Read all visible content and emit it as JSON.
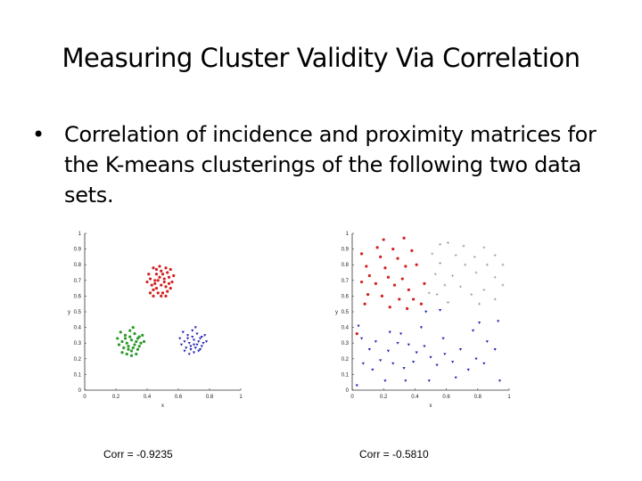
{
  "slide": {
    "title": "Measuring Cluster Validity Via Correlation",
    "bullet": "•",
    "bullet_text": "Correlation of incidence and proximity matrices for the K-means clusterings of the following two data sets."
  },
  "chart_data": [
    {
      "type": "scatter",
      "caption": "Corr = -0.9235",
      "xlabel": "x",
      "ylabel": "y",
      "xlim": [
        0,
        1
      ],
      "ylim": [
        0,
        1
      ],
      "x_ticks": [
        "0",
        "0.2",
        "0.4",
        "0.6",
        "0.8",
        "1"
      ],
      "y_ticks": [
        "0",
        "0.1",
        "0.2",
        "0.3",
        "0.4",
        "0.5",
        "0.6",
        "0.7",
        "0.8",
        "0.9",
        "1"
      ],
      "series": [
        {
          "color": "#d42020",
          "marker": "dot",
          "points": [
            [
              0.44,
              0.78
            ],
            [
              0.46,
              0.74
            ],
            [
              0.49,
              0.76
            ],
            [
              0.52,
              0.78
            ],
            [
              0.55,
              0.77
            ],
            [
              0.42,
              0.71
            ],
            [
              0.45,
              0.7
            ],
            [
              0.48,
              0.72
            ],
            [
              0.51,
              0.71
            ],
            [
              0.54,
              0.72
            ],
            [
              0.43,
              0.67
            ],
            [
              0.46,
              0.65
            ],
            [
              0.49,
              0.67
            ],
            [
              0.52,
              0.66
            ],
            [
              0.47,
              0.62
            ],
            [
              0.5,
              0.62
            ],
            [
              0.53,
              0.63
            ],
            [
              0.44,
              0.64
            ],
            [
              0.56,
              0.69
            ],
            [
              0.41,
              0.74
            ],
            [
              0.48,
              0.79
            ],
            [
              0.51,
              0.69
            ],
            [
              0.45,
              0.68
            ],
            [
              0.5,
              0.74
            ],
            [
              0.53,
              0.75
            ],
            [
              0.47,
              0.7
            ],
            [
              0.55,
              0.65
            ],
            [
              0.42,
              0.62
            ],
            [
              0.49,
              0.6
            ],
            [
              0.57,
              0.73
            ],
            [
              0.4,
              0.69
            ],
            [
              0.44,
              0.6
            ],
            [
              0.52,
              0.6
            ],
            [
              0.46,
              0.77
            ],
            [
              0.54,
              0.68
            ]
          ]
        },
        {
          "color": "#2a9a2a",
          "marker": "dot",
          "points": [
            [
              0.23,
              0.37
            ],
            [
              0.26,
              0.35
            ],
            [
              0.29,
              0.38
            ],
            [
              0.32,
              0.36
            ],
            [
              0.35,
              0.34
            ],
            [
              0.24,
              0.31
            ],
            [
              0.27,
              0.3
            ],
            [
              0.3,
              0.32
            ],
            [
              0.33,
              0.31
            ],
            [
              0.36,
              0.3
            ],
            [
              0.25,
              0.27
            ],
            [
              0.28,
              0.26
            ],
            [
              0.31,
              0.27
            ],
            [
              0.34,
              0.26
            ],
            [
              0.27,
              0.23
            ],
            [
              0.3,
              0.22
            ],
            [
              0.33,
              0.23
            ],
            [
              0.22,
              0.29
            ],
            [
              0.37,
              0.35
            ],
            [
              0.29,
              0.34
            ],
            [
              0.32,
              0.29
            ],
            [
              0.26,
              0.33
            ],
            [
              0.35,
              0.28
            ],
            [
              0.24,
              0.24
            ],
            [
              0.31,
              0.4
            ],
            [
              0.28,
              0.28
            ],
            [
              0.34,
              0.33
            ],
            [
              0.21,
              0.33
            ],
            [
              0.38,
              0.31
            ],
            [
              0.3,
              0.25
            ]
          ]
        },
        {
          "color": "#2020b0",
          "marker": "triangle",
          "points": [
            [
              0.63,
              0.37
            ],
            [
              0.66,
              0.35
            ],
            [
              0.69,
              0.38
            ],
            [
              0.72,
              0.36
            ],
            [
              0.75,
              0.34
            ],
            [
              0.64,
              0.31
            ],
            [
              0.67,
              0.3
            ],
            [
              0.7,
              0.32
            ],
            [
              0.73,
              0.31
            ],
            [
              0.76,
              0.3
            ],
            [
              0.65,
              0.27
            ],
            [
              0.68,
              0.26
            ],
            [
              0.71,
              0.27
            ],
            [
              0.74,
              0.26
            ],
            [
              0.67,
              0.23
            ],
            [
              0.7,
              0.24
            ],
            [
              0.73,
              0.25
            ],
            [
              0.62,
              0.29
            ],
            [
              0.77,
              0.35
            ],
            [
              0.69,
              0.34
            ],
            [
              0.72,
              0.29
            ],
            [
              0.66,
              0.33
            ],
            [
              0.75,
              0.28
            ],
            [
              0.64,
              0.25
            ],
            [
              0.71,
              0.4
            ],
            [
              0.68,
              0.28
            ],
            [
              0.74,
              0.33
            ],
            [
              0.61,
              0.33
            ],
            [
              0.78,
              0.31
            ],
            [
              0.7,
              0.29
            ]
          ]
        }
      ]
    },
    {
      "type": "scatter",
      "caption": "Corr = -0.5810",
      "xlabel": "x",
      "ylabel": "y",
      "xlim": [
        0,
        1
      ],
      "ylim": [
        0,
        1
      ],
      "x_ticks": [
        "0",
        "0.2",
        "0.4",
        "0.6",
        "0.8",
        "1"
      ],
      "y_ticks": [
        "0",
        "0.1",
        "0.2",
        "0.3",
        "0.4",
        "0.5",
        "0.6",
        "0.7",
        "0.8",
        "0.9",
        "1"
      ],
      "series": [
        {
          "color": "#d42020",
          "marker": "dot",
          "points": [
            [
              0.2,
              0.96
            ],
            [
              0.33,
              0.97
            ],
            [
              0.16,
              0.91
            ],
            [
              0.26,
              0.9
            ],
            [
              0.38,
              0.89
            ],
            [
              0.06,
              0.87
            ],
            [
              0.18,
              0.85
            ],
            [
              0.29,
              0.84
            ],
            [
              0.09,
              0.79
            ],
            [
              0.21,
              0.78
            ],
            [
              0.34,
              0.79
            ],
            [
              0.41,
              0.8
            ],
            [
              0.11,
              0.73
            ],
            [
              0.23,
              0.72
            ],
            [
              0.32,
              0.71
            ],
            [
              0.06,
              0.69
            ],
            [
              0.15,
              0.68
            ],
            [
              0.27,
              0.67
            ],
            [
              0.36,
              0.64
            ],
            [
              0.1,
              0.61
            ],
            [
              0.19,
              0.6
            ],
            [
              0.3,
              0.58
            ],
            [
              0.39,
              0.58
            ],
            [
              0.24,
              0.53
            ],
            [
              0.35,
              0.52
            ],
            [
              0.44,
              0.55
            ],
            [
              0.08,
              0.55
            ],
            [
              0.46,
              0.68
            ],
            [
              0.03,
              0.36
            ]
          ]
        },
        {
          "color": "#9a9a86",
          "marker": "plus",
          "points": [
            [
              0.56,
              0.93
            ],
            [
              0.61,
              0.94
            ],
            [
              0.71,
              0.92
            ],
            [
              0.84,
              0.91
            ],
            [
              0.51,
              0.87
            ],
            [
              0.66,
              0.86
            ],
            [
              0.78,
              0.85
            ],
            [
              0.91,
              0.86
            ],
            [
              0.56,
              0.81
            ],
            [
              0.72,
              0.8
            ],
            [
              0.86,
              0.8
            ],
            [
              0.96,
              0.8
            ],
            [
              0.53,
              0.74
            ],
            [
              0.64,
              0.73
            ],
            [
              0.79,
              0.75
            ],
            [
              0.91,
              0.72
            ],
            [
              0.59,
              0.67
            ],
            [
              0.69,
              0.66
            ],
            [
              0.84,
              0.64
            ],
            [
              0.96,
              0.67
            ],
            [
              0.54,
              0.61
            ],
            [
              0.76,
              0.61
            ],
            [
              0.91,
              0.58
            ],
            [
              0.61,
              0.56
            ],
            [
              0.81,
              0.55
            ],
            [
              0.49,
              0.62
            ]
          ]
        },
        {
          "color": "#2020b0",
          "marker": "triangle",
          "points": [
            [
              0.47,
              0.5
            ],
            [
              0.56,
              0.51
            ],
            [
              0.04,
              0.41
            ],
            [
              0.24,
              0.37
            ],
            [
              0.31,
              0.36
            ],
            [
              0.06,
              0.33
            ],
            [
              0.15,
              0.31
            ],
            [
              0.29,
              0.3
            ],
            [
              0.36,
              0.29
            ],
            [
              0.11,
              0.26
            ],
            [
              0.23,
              0.25
            ],
            [
              0.41,
              0.24
            ],
            [
              0.18,
              0.19
            ],
            [
              0.26,
              0.17
            ],
            [
              0.39,
              0.18
            ],
            [
              0.07,
              0.17
            ],
            [
              0.13,
              0.13
            ],
            [
              0.33,
              0.14
            ],
            [
              0.46,
              0.28
            ],
            [
              0.5,
              0.21
            ],
            [
              0.54,
              0.16
            ],
            [
              0.59,
              0.23
            ],
            [
              0.64,
              0.18
            ],
            [
              0.69,
              0.26
            ],
            [
              0.74,
              0.13
            ],
            [
              0.79,
              0.2
            ],
            [
              0.84,
              0.17
            ],
            [
              0.86,
              0.31
            ],
            [
              0.91,
              0.26
            ],
            [
              0.94,
              0.06
            ],
            [
              0.66,
              0.08
            ],
            [
              0.49,
              0.06
            ],
            [
              0.58,
              0.33
            ],
            [
              0.77,
              0.38
            ],
            [
              0.93,
              0.44
            ],
            [
              0.21,
              0.06
            ],
            [
              0.03,
              0.03
            ],
            [
              0.81,
              0.43
            ],
            [
              0.44,
              0.4
            ],
            [
              0.34,
              0.06
            ]
          ]
        }
      ]
    }
  ]
}
